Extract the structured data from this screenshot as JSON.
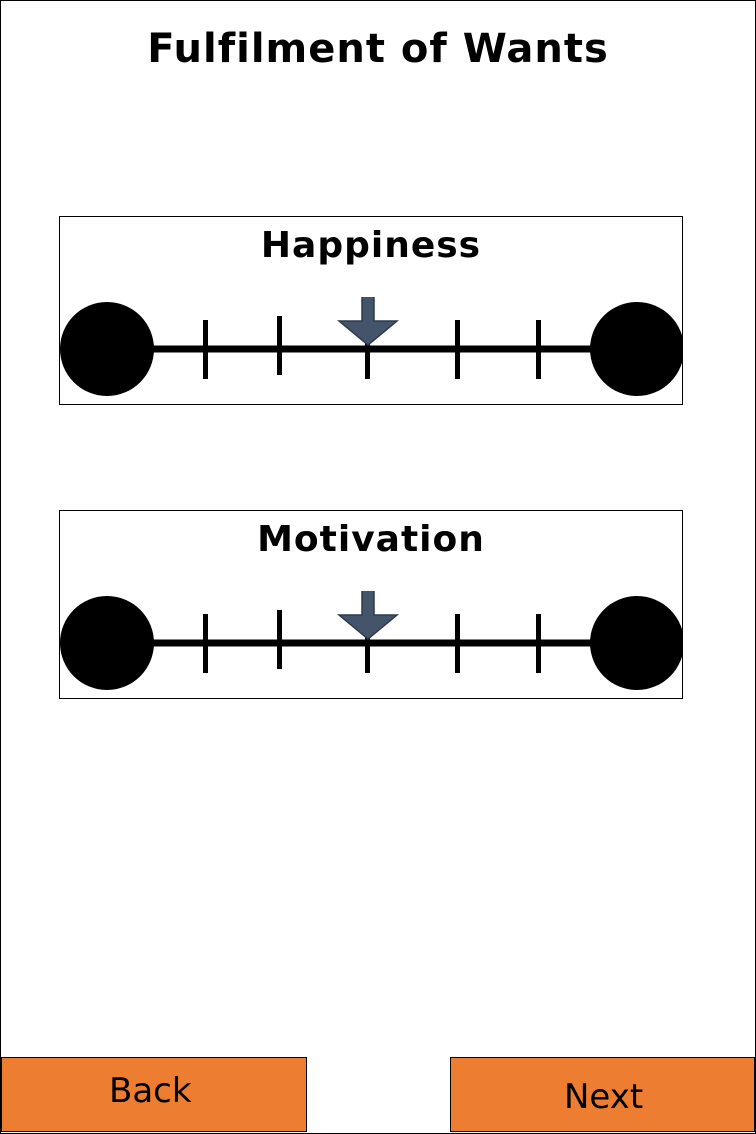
{
  "page": {
    "title": "Fulfilment of Wants"
  },
  "sliders": [
    {
      "label": "Happiness",
      "min": 0,
      "max": 6,
      "value": 3,
      "tick_count": 5,
      "marker_icon": "down-arrow-icon",
      "marker_color": "#44546a"
    },
    {
      "label": "Motivation",
      "min": 0,
      "max": 6,
      "value": 3,
      "tick_count": 5,
      "marker_icon": "down-arrow-icon",
      "marker_color": "#44546a"
    }
  ],
  "navigation": {
    "back_label": "Back",
    "next_label": "Next",
    "button_color": "#ed7d31"
  }
}
